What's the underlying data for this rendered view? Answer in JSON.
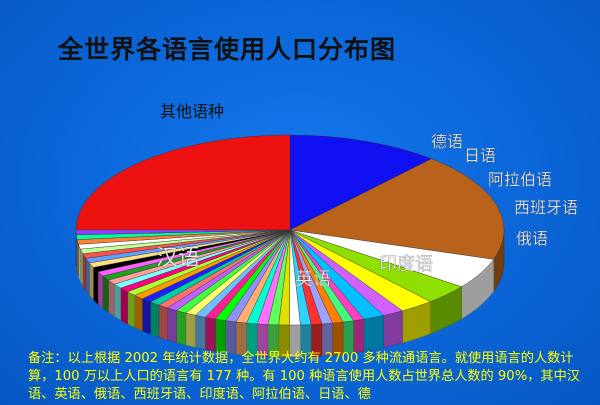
{
  "chart_data": {
    "type": "pie",
    "title": "全世界各语言使用人口分布图",
    "slices": [
      {
        "label": "汉语",
        "value": 25.0,
        "color": "#ee1111",
        "label_color": "#ffffff"
      },
      {
        "label": "英语",
        "value": 11.5,
        "color": "#1010f0",
        "label_color": "#ffffff"
      },
      {
        "label": "印度语",
        "value": 18.5,
        "color": "#b8621c",
        "label_color": "#ffffff"
      },
      {
        "label": "俄语",
        "value": 5.2,
        "color": "#ffffff",
        "label_color": "#ffffff"
      },
      {
        "label": "西班牙语",
        "value": 3.4,
        "color": "#8fe000",
        "label_color": "#ffffff"
      },
      {
        "label": "阿拉伯语",
        "value": 2.6,
        "color": "#ffff00",
        "label_color": "#ffffff"
      },
      {
        "label": "日语",
        "value": 1.6,
        "color": "#d060ff",
        "label_color": "#ffffff"
      },
      {
        "label": "德语",
        "value": 1.6,
        "color": "#00c0ff",
        "label_color": "#ffffff"
      },
      {
        "label": "其他语种",
        "value": 30.6,
        "label_color": "#111111",
        "colors": [
          "#ff40c0",
          "#40ff80",
          "#ff8000",
          "#a0a0ff",
          "#ff3030",
          "#30d0ff",
          "#ffffff",
          "#e0e000",
          "#60ff60",
          "#ff70ff",
          "#00ffd0",
          "#ffb070",
          "#9090ff",
          "#00ff00",
          "#ff2090",
          "#70c0ff",
          "#ffff70",
          "#40ff40",
          "#c060ff",
          "#ff7070",
          "#00d0a0",
          "#2020ff",
          "#ff9900",
          "#b0ff30",
          "#ff0080",
          "#80ffff",
          "#ffa0a0",
          "#20a020",
          "#ff60ff",
          "#000000",
          "#ffe080",
          "#60a0ff",
          "#ff5050",
          "#c0ff90",
          "#ffffff",
          "#ff8030",
          "#00ff99",
          "#9040ff"
        ]
      }
    ]
  },
  "note": {
    "text": "备注：以上根据 2002 年统计数据，全世界大约有 2700 多种流通语言。就使用语言的人数计算，100 万以上人口的语言有 177 种。有 100 种语言使用人数占世界总人数的 90%，其中汉语、英语、俄语、西班牙语、印度语、阿拉伯语、日语、德"
  }
}
